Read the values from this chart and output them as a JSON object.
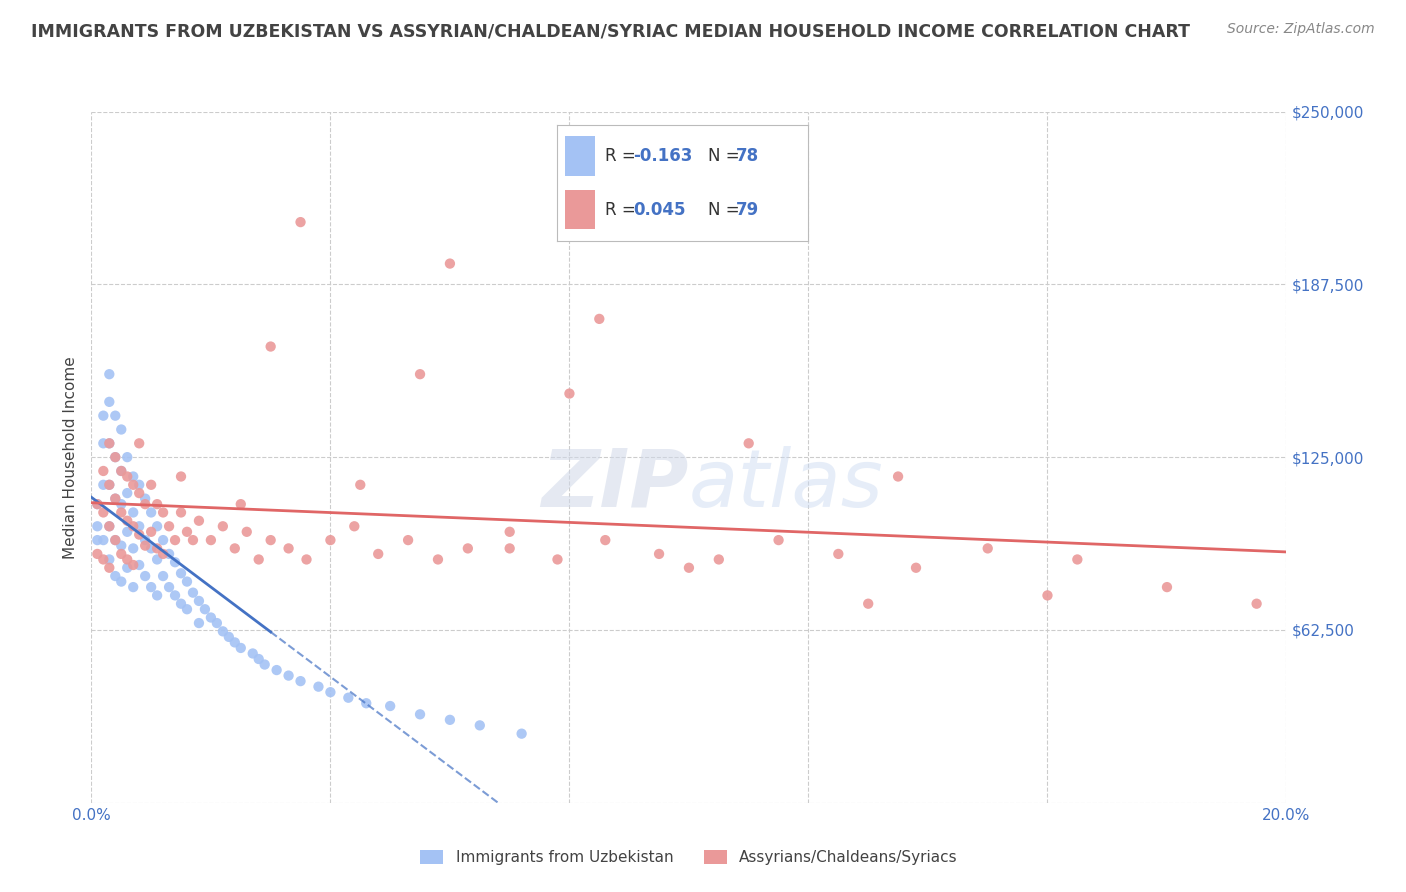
{
  "title": "IMMIGRANTS FROM UZBEKISTAN VS ASSYRIAN/CHALDEAN/SYRIAC MEDIAN HOUSEHOLD INCOME CORRELATION CHART",
  "source": "Source: ZipAtlas.com",
  "ylabel": "Median Household Income",
  "xlim": [
    0.0,
    0.2
  ],
  "ylim": [
    0,
    250000
  ],
  "yticks": [
    0,
    62500,
    125000,
    187500,
    250000
  ],
  "ytick_labels": [
    "",
    "$62,500",
    "$125,000",
    "$187,500",
    "$250,000"
  ],
  "xticks": [
    0.0,
    0.04,
    0.08,
    0.12,
    0.16,
    0.2
  ],
  "xtick_labels": [
    "0.0%",
    "",
    "",
    "",
    "",
    "20.0%"
  ],
  "legend_labels": [
    "Immigrants from Uzbekistan",
    "Assyrians/Chaldeans/Syriacs"
  ],
  "series1_color": "#a4c2f4",
  "series2_color": "#ea9999",
  "trend1_color": "#4472c4",
  "trend2_color": "#e06666",
  "r1": -0.163,
  "n1": 78,
  "r2": 0.045,
  "n2": 79,
  "watermark": "ZIPatlas",
  "background_color": "#ffffff",
  "grid_color": "#cccccc",
  "title_color": "#434343",
  "axis_label_color": "#434343",
  "tick_color": "#4472c4",
  "legend_r_color": "#4472c4",
  "legend_n_color": "#4472c4",
  "series1_x": [
    0.001,
    0.001,
    0.001,
    0.002,
    0.002,
    0.002,
    0.002,
    0.003,
    0.003,
    0.003,
    0.003,
    0.003,
    0.003,
    0.004,
    0.004,
    0.004,
    0.004,
    0.004,
    0.005,
    0.005,
    0.005,
    0.005,
    0.005,
    0.006,
    0.006,
    0.006,
    0.006,
    0.007,
    0.007,
    0.007,
    0.007,
    0.008,
    0.008,
    0.008,
    0.009,
    0.009,
    0.009,
    0.01,
    0.01,
    0.01,
    0.011,
    0.011,
    0.011,
    0.012,
    0.012,
    0.013,
    0.013,
    0.014,
    0.014,
    0.015,
    0.015,
    0.016,
    0.016,
    0.017,
    0.018,
    0.018,
    0.019,
    0.02,
    0.021,
    0.022,
    0.023,
    0.024,
    0.025,
    0.027,
    0.028,
    0.029,
    0.031,
    0.033,
    0.035,
    0.038,
    0.04,
    0.043,
    0.046,
    0.05,
    0.055,
    0.06,
    0.065,
    0.072
  ],
  "series1_y": [
    100000,
    95000,
    108000,
    140000,
    130000,
    115000,
    95000,
    155000,
    145000,
    130000,
    115000,
    100000,
    88000,
    140000,
    125000,
    110000,
    95000,
    82000,
    135000,
    120000,
    108000,
    93000,
    80000,
    125000,
    112000,
    98000,
    85000,
    118000,
    105000,
    92000,
    78000,
    115000,
    100000,
    86000,
    110000,
    95000,
    82000,
    105000,
    92000,
    78000,
    100000,
    88000,
    75000,
    95000,
    82000,
    90000,
    78000,
    87000,
    75000,
    83000,
    72000,
    80000,
    70000,
    76000,
    73000,
    65000,
    70000,
    67000,
    65000,
    62000,
    60000,
    58000,
    56000,
    54000,
    52000,
    50000,
    48000,
    46000,
    44000,
    42000,
    40000,
    38000,
    36000,
    35000,
    32000,
    30000,
    28000,
    25000
  ],
  "series2_x": [
    0.001,
    0.001,
    0.002,
    0.002,
    0.002,
    0.003,
    0.003,
    0.003,
    0.003,
    0.004,
    0.004,
    0.004,
    0.005,
    0.005,
    0.005,
    0.006,
    0.006,
    0.006,
    0.007,
    0.007,
    0.007,
    0.008,
    0.008,
    0.009,
    0.009,
    0.01,
    0.01,
    0.011,
    0.011,
    0.012,
    0.012,
    0.013,
    0.014,
    0.015,
    0.016,
    0.017,
    0.018,
    0.02,
    0.022,
    0.024,
    0.026,
    0.028,
    0.03,
    0.033,
    0.036,
    0.04,
    0.044,
    0.048,
    0.053,
    0.058,
    0.063,
    0.07,
    0.078,
    0.086,
    0.095,
    0.105,
    0.115,
    0.125,
    0.138,
    0.15,
    0.165,
    0.18,
    0.03,
    0.055,
    0.08,
    0.035,
    0.06,
    0.085,
    0.11,
    0.135,
    0.16,
    0.008,
    0.015,
    0.025,
    0.045,
    0.07,
    0.1,
    0.13,
    0.195
  ],
  "series2_y": [
    108000,
    90000,
    120000,
    105000,
    88000,
    130000,
    115000,
    100000,
    85000,
    125000,
    110000,
    95000,
    120000,
    105000,
    90000,
    118000,
    102000,
    88000,
    115000,
    100000,
    86000,
    112000,
    97000,
    108000,
    93000,
    115000,
    98000,
    108000,
    92000,
    105000,
    90000,
    100000,
    95000,
    105000,
    98000,
    95000,
    102000,
    95000,
    100000,
    92000,
    98000,
    88000,
    95000,
    92000,
    88000,
    95000,
    100000,
    90000,
    95000,
    88000,
    92000,
    98000,
    88000,
    95000,
    90000,
    88000,
    95000,
    90000,
    85000,
    92000,
    88000,
    78000,
    165000,
    155000,
    148000,
    210000,
    195000,
    175000,
    130000,
    118000,
    75000,
    130000,
    118000,
    108000,
    115000,
    92000,
    85000,
    72000,
    72000
  ]
}
